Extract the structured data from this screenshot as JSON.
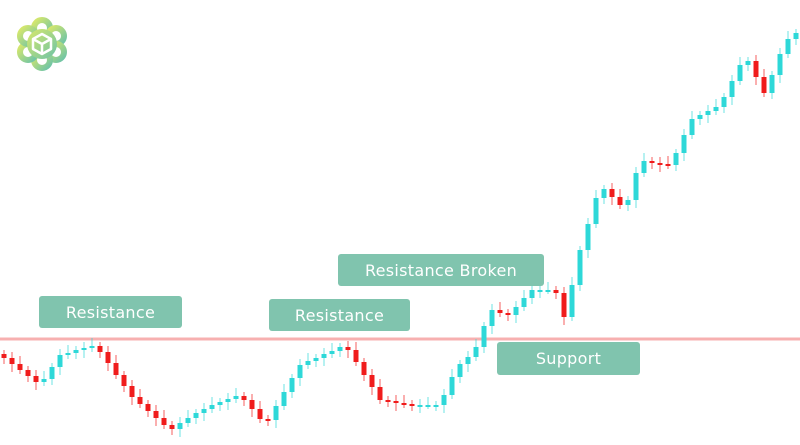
{
  "chart_data": {
    "type": "candlestick",
    "title": "",
    "xlabel": "",
    "ylabel": "",
    "grid": false,
    "ylim": [
      0,
      445
    ],
    "closes": [
      87,
      81,
      75,
      69,
      63,
      66,
      78,
      90,
      92,
      95,
      97,
      99,
      93,
      82,
      70,
      59,
      48,
      41,
      34,
      27,
      20,
      16,
      22,
      27,
      32,
      36,
      40,
      43,
      46,
      49,
      45,
      36,
      26,
      25,
      39,
      53,
      67,
      80,
      84,
      87,
      91,
      94,
      98,
      95,
      83,
      70,
      58,
      45,
      44,
      42,
      41,
      40,
      40,
      40,
      40,
      50,
      68,
      81,
      88,
      98,
      119,
      135,
      132,
      130,
      138,
      147,
      155,
      155,
      155,
      152,
      128,
      160,
      195,
      221,
      247,
      256,
      248,
      240,
      245,
      272,
      284,
      282,
      281,
      280,
      292,
      310,
      326,
      330,
      334,
      338,
      348,
      364,
      380,
      384,
      368,
      352,
      370,
      391,
      406,
      412
    ],
    "resistance_level": 106,
    "annotations": [
      {
        "text": "Resistance"
      },
      {
        "text": "Resistance"
      },
      {
        "text": "Resistance Broken"
      },
      {
        "text": "Support"
      }
    ],
    "colors": {
      "up": "#2ed8d8",
      "down": "#f01c1c",
      "level_line": "#f7b0b0",
      "label_bg": "#80c4ae",
      "label_text": "#ffffff"
    }
  },
  "logo": {
    "name": "cube-flower-logo"
  }
}
